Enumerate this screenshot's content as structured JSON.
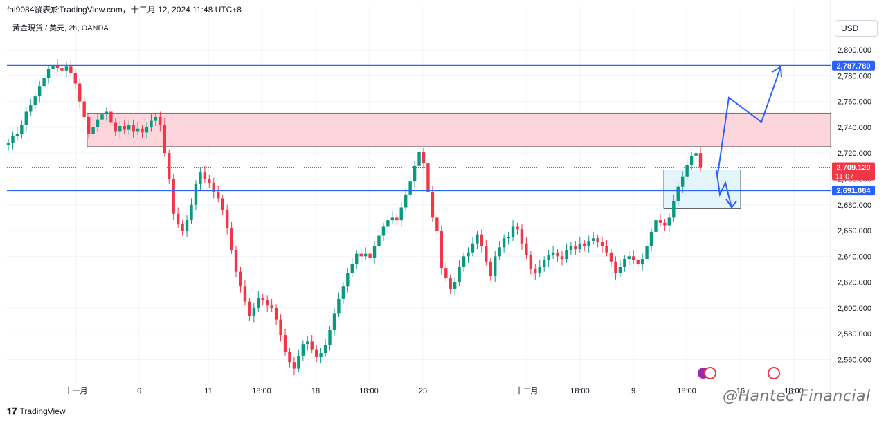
{
  "header": {
    "attribution": "fai9084發表於TradingView.com，十二月 12, 2024 11:48 UTC+8",
    "symbol": "黃金現貨 / 美元, 2h, OANDA",
    "currency_button": "USD"
  },
  "footer": {
    "brand": "TradingView",
    "watermark": "@Hantec Financial"
  },
  "colors": {
    "up": "#089981",
    "down": "#f23645",
    "level_line": "#2962ff",
    "zone_fill": "#fcd6da",
    "box_fill": "#e3f4fa",
    "box_stroke": "#333333",
    "price_tag": "#f23645"
  },
  "chart_data": {
    "type": "line",
    "title": "",
    "xlabel": "",
    "ylabel": "",
    "ylim": [
      2543,
      2813
    ],
    "y_ticks": [
      2560,
      2580,
      2600,
      2620,
      2640,
      2660,
      2680,
      2700,
      2720,
      2740,
      2760,
      2780,
      2800
    ],
    "y_tick_labels": [
      "2,560.000",
      "2,580.000",
      "2,600.000",
      "2,620.000",
      "2,640.000",
      "2,660.000",
      "2,680.000",
      "2,700.000",
      "2,720.000",
      "2,740.000",
      "2,760.000",
      "2,780.000",
      "2,800.000"
    ],
    "x_tick_labels": [
      "十一月",
      "6",
      "11",
      "18:00",
      "18",
      "18:00",
      "25",
      "十二月",
      "18:00",
      "9",
      "18:00",
      "16",
      "18:00"
    ],
    "series": [
      {
        "values": [
          2728,
          2733,
          2735,
          2742,
          2752,
          2757,
          2764,
          2772,
          2778,
          2785,
          2788,
          2786,
          2784,
          2787,
          2782,
          2774,
          2760,
          2748,
          2735,
          2740,
          2746,
          2750,
          2752,
          2744,
          2737,
          2741,
          2738,
          2742,
          2737,
          2739,
          2736,
          2740,
          2745,
          2748,
          2742,
          2720,
          2700,
          2673,
          2665,
          2660,
          2668,
          2680,
          2696,
          2705,
          2700,
          2697,
          2690,
          2685,
          2676,
          2662,
          2645,
          2628,
          2617,
          2605,
          2594,
          2600,
          2608,
          2606,
          2602,
          2600,
          2591,
          2579,
          2566,
          2558,
          2553,
          2563,
          2572,
          2574,
          2568,
          2562,
          2565,
          2571,
          2583,
          2596,
          2607,
          2617,
          2627,
          2634,
          2642,
          2640,
          2642,
          2639,
          2648,
          2656,
          2663,
          2668,
          2670,
          2668,
          2678,
          2688,
          2698,
          2710,
          2721,
          2712,
          2690,
          2670,
          2660,
          2631,
          2623,
          2615,
          2620,
          2632,
          2640,
          2643,
          2650,
          2657,
          2648,
          2636,
          2625,
          2640,
          2647,
          2654,
          2655,
          2663,
          2661,
          2650,
          2641,
          2630,
          2627,
          2632,
          2637,
          2641,
          2643,
          2640,
          2638,
          2645,
          2648,
          2646,
          2650,
          2648,
          2652,
          2654,
          2651,
          2648,
          2643,
          2636,
          2627,
          2632,
          2638,
          2640,
          2637,
          2634,
          2638,
          2648,
          2659,
          2668,
          2666,
          2664,
          2670,
          2683,
          2694,
          2702,
          2711,
          2718,
          2720,
          2709
        ]
      }
    ],
    "horizontal_levels": [
      {
        "value": 2787.78,
        "label": "2,787.780"
      },
      {
        "value": 2691.084,
        "label": "2,691.084"
      }
    ],
    "resistance_zone": [
      2725,
      2751
    ],
    "current_price": {
      "value": 2709.12,
      "label": "2,709.120",
      "countdown": "11:07"
    },
    "consolidation_box": [
      2677,
      2707
    ],
    "scenario_up_path": [
      2704,
      2763,
      2744,
      2787
    ],
    "scenario_down_path": [
      2707,
      2688,
      2697,
      2678
    ]
  }
}
